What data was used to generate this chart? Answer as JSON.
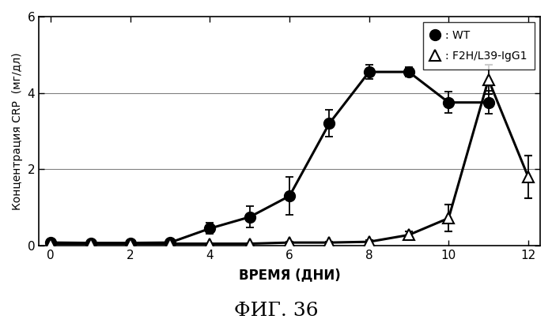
{
  "wt_x": [
    0,
    1,
    2,
    3,
    4,
    5,
    6,
    7,
    8,
    9,
    10,
    11
  ],
  "wt_y": [
    0.08,
    0.07,
    0.07,
    0.08,
    0.45,
    0.75,
    1.3,
    3.2,
    4.55,
    4.55,
    3.75,
    3.75
  ],
  "wt_yerr": [
    0.04,
    0.03,
    0.03,
    0.04,
    0.15,
    0.28,
    0.5,
    0.35,
    0.18,
    0.12,
    0.28,
    0.3
  ],
  "f2h_x": [
    0,
    1,
    2,
    3,
    4,
    5,
    6,
    7,
    8,
    9,
    10,
    11,
    12
  ],
  "f2h_y": [
    0.05,
    0.05,
    0.05,
    0.05,
    0.05,
    0.05,
    0.08,
    0.08,
    0.1,
    0.28,
    0.72,
    4.35,
    1.8
  ],
  "f2h_yerr": [
    0.02,
    0.02,
    0.02,
    0.02,
    0.02,
    0.02,
    0.03,
    0.03,
    0.04,
    0.1,
    0.35,
    0.38,
    0.55
  ],
  "xlabel": "ВРЕМЯ (ДНИ)",
  "ylabel": "Концентрация CRP  (мг/дл)",
  "title": "ФИГ. 36",
  "xlim": [
    -0.3,
    12.3
  ],
  "ylim": [
    0,
    6
  ],
  "yticks": [
    0,
    2,
    4,
    6
  ],
  "xticks": [
    0,
    2,
    4,
    6,
    8,
    10,
    12
  ],
  "legend_wt": ": WT",
  "legend_f2h": ": F2H/L39-IgG1",
  "bg_color": "#ffffff",
  "line_color": "#000000"
}
